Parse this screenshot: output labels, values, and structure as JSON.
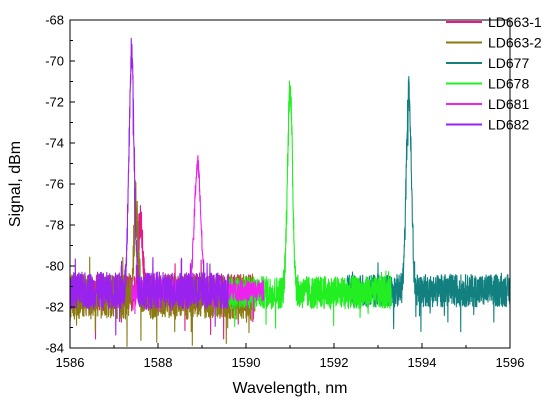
{
  "chart_data": {
    "type": "line",
    "title": "",
    "xlabel": "Wavelength, nm",
    "ylabel": "Signal, dBm",
    "xlim": [
      1586,
      1596
    ],
    "ylim": [
      -84,
      -68
    ],
    "xticks": [
      1586,
      1588,
      1590,
      1592,
      1594,
      1596
    ],
    "yticks": [
      -84,
      -82,
      -80,
      -78,
      -76,
      -74,
      -72,
      -70,
      -68
    ],
    "grid": false,
    "legend_position": "top-right",
    "series": [
      {
        "name": "LD663-1",
        "color": "#e6188a",
        "x_range": [
          1586.0,
          1590.2
        ],
        "noise_floor": -81.3,
        "noise_amp": 0.9,
        "peak_x": 1587.6,
        "peak_y": -77.8,
        "peak_width": 0.07
      },
      {
        "name": "LD663-2",
        "color": "#8a7a10",
        "x_range": [
          1586.0,
          1590.2
        ],
        "noise_floor": -81.5,
        "noise_amp": 1.1,
        "peak_x": 1587.5,
        "peak_y": -77.3,
        "peak_width": 0.07
      },
      {
        "name": "LD677",
        "color": "#138080",
        "x_range": [
          1592.3,
          1596.0
        ],
        "noise_floor": -81.2,
        "noise_amp": 0.8,
        "peak_x": 1593.7,
        "peak_y": -71.5,
        "peak_width": 0.08
      },
      {
        "name": "LD678",
        "color": "#22ee22",
        "x_range": [
          1589.6,
          1593.3
        ],
        "noise_floor": -81.3,
        "noise_amp": 0.8,
        "peak_x": 1591.0,
        "peak_y": -71.3,
        "peak_width": 0.08
      },
      {
        "name": "LD681",
        "color": "#ee22ee",
        "x_range": [
          1587.4,
          1590.4
        ],
        "noise_floor": -81.2,
        "noise_amp": 0.5,
        "peak_x": 1588.9,
        "peak_y": -75.0,
        "peak_width": 0.1
      },
      {
        "name": "LD682",
        "color": "#9a22ee",
        "x_range": [
          1586.0,
          1589.6
        ],
        "noise_floor": -81.2,
        "noise_amp": 0.9,
        "peak_x": 1587.4,
        "peak_y": -69.6,
        "peak_width": 0.08
      }
    ]
  }
}
